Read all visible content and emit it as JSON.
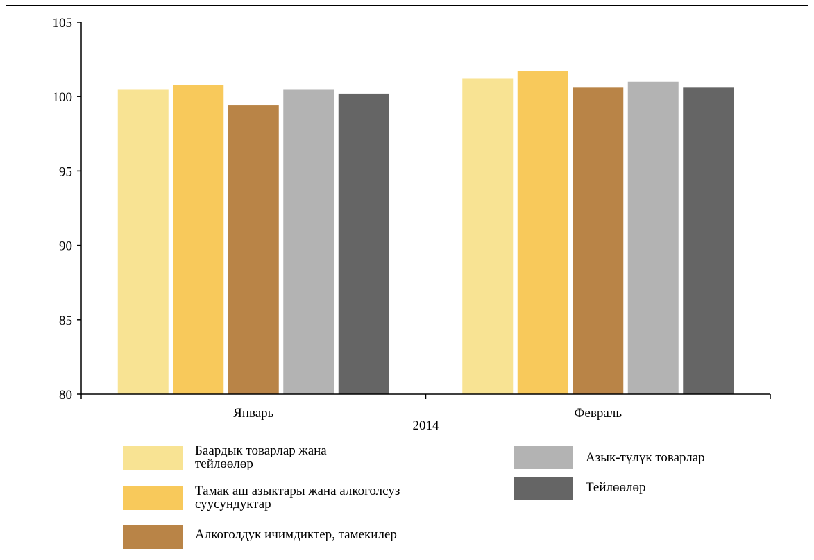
{
  "chart_data": {
    "type": "bar",
    "categories": [
      "Январь",
      "Февраль"
    ],
    "group_label": "2014",
    "ylim": [
      80,
      105
    ],
    "yticks": [
      80,
      85,
      90,
      95,
      100,
      105
    ],
    "grid": false,
    "legend_position": "bottom",
    "series": [
      {
        "name": "Баардык товарлар жана тейлөөлөр",
        "color": "#F8E393",
        "values": [
          100.5,
          101.2
        ]
      },
      {
        "name": "Тамак аш азыктары жана алкоголсуз суусундуктар",
        "color": "#F8C95B",
        "values": [
          100.8,
          101.7
        ]
      },
      {
        "name": "Алкоголдук ичимдиктер, тамекилер",
        "color": "#B98447",
        "values": [
          99.4,
          100.6
        ]
      },
      {
        "name": "Азык-түлүк товарлар",
        "color": "#B3B3B3",
        "values": [
          100.5,
          101.0
        ]
      },
      {
        "name": "Тейлөөлөр",
        "color": "#656565",
        "values": [
          100.2,
          100.6
        ]
      }
    ]
  },
  "legend": {
    "items": [
      {
        "label_lines": [
          "Баардык товарлар жана",
          "тейлөөлөр"
        ]
      },
      {
        "label_lines": [
          "Тамак аш азыктары жана алкоголсуз",
          "суусундуктар"
        ]
      },
      {
        "label_lines": [
          "Алкоголдук ичимдиктер, тамекилер"
        ]
      },
      {
        "label_lines": [
          "Азык-түлүк товарлар"
        ]
      },
      {
        "label_lines": [
          "Тейлөөлөр"
        ]
      }
    ]
  }
}
